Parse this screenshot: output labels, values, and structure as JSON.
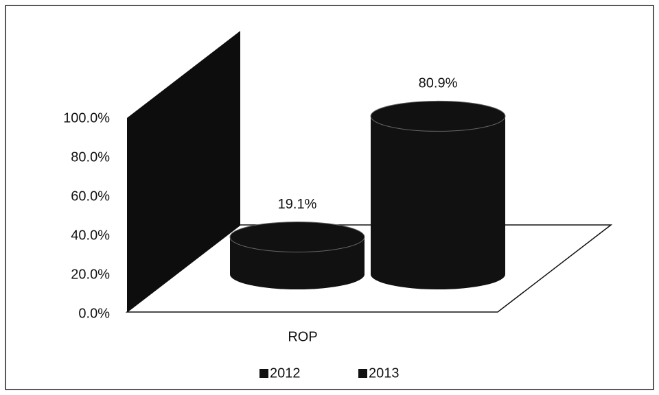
{
  "chart_data": {
    "type": "bar3d",
    "categories": [
      "ROP"
    ],
    "series": [
      {
        "name": "2012",
        "color": "#111111",
        "values": [
          19.1
        ],
        "value_labels": [
          "19.1%"
        ]
      },
      {
        "name": "2013",
        "color": "#111111",
        "values": [
          80.9
        ],
        "value_labels": [
          "80.9%"
        ]
      }
    ],
    "ylim": [
      0,
      100
    ],
    "yticks": [
      {
        "value": 0,
        "label": "0.0%"
      },
      {
        "value": 20,
        "label": "20.0%"
      },
      {
        "value": 40,
        "label": "40.0%"
      },
      {
        "value": 60,
        "label": "60.0%"
      },
      {
        "value": 80,
        "label": "80.0%"
      },
      {
        "value": 100,
        "label": "100.0%"
      }
    ],
    "legend": "bottom"
  }
}
